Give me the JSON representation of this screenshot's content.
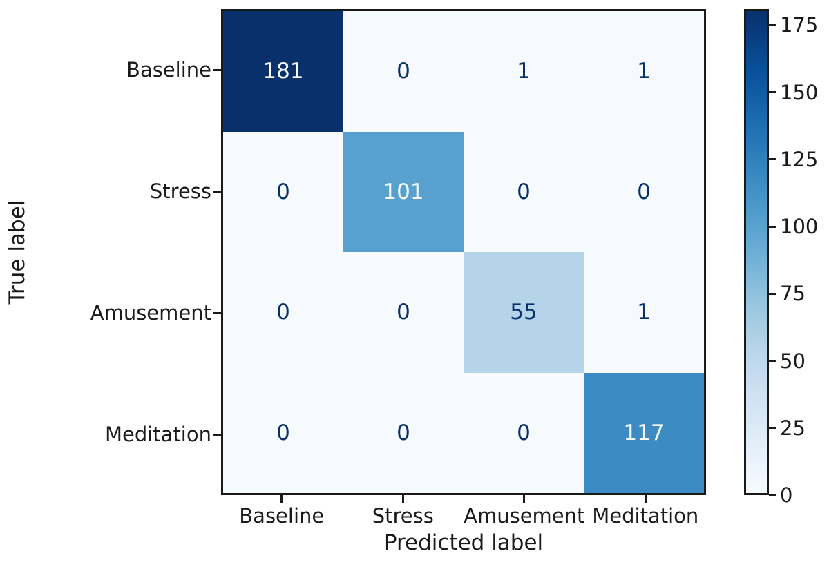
{
  "chart_data": {
    "type": "heatmap",
    "subtype": "confusion-matrix",
    "title": "",
    "xlabel": "Predicted label",
    "ylabel": "True label",
    "x_tick_labels": [
      "Baseline",
      "Stress",
      "Amusement",
      "Meditation"
    ],
    "y_tick_labels": [
      "Baseline",
      "Stress",
      "Amusement",
      "Meditation"
    ],
    "matrix": [
      [
        181,
        0,
        1,
        1
      ],
      [
        0,
        101,
        0,
        0
      ],
      [
        0,
        0,
        55,
        1
      ],
      [
        0,
        0,
        0,
        117
      ]
    ],
    "vmin": 0,
    "vmax": 181,
    "colorbar_ticks": [
      0,
      25,
      50,
      75,
      100,
      125,
      150,
      175
    ],
    "legend_position": "right-colorbar",
    "grid": false,
    "colormap": {
      "name": "Blues",
      "stops": [
        "#f7fbff",
        "#deebf7",
        "#c6dbef",
        "#9ecae1",
        "#6baed6",
        "#4292c6",
        "#2171b5",
        "#08519c",
        "#08306b"
      ]
    },
    "colors": {
      "cell_text_dark": "#08306b",
      "cell_text_light": "#f7fbff",
      "axis_frame": "#1a1a1a",
      "tick_label_color": "#1a1a1a",
      "background": "#ffffff"
    }
  }
}
